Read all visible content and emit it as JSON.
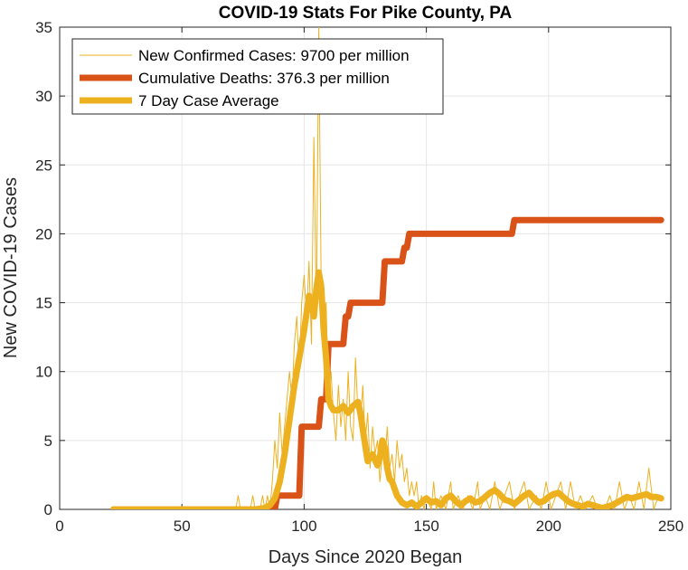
{
  "chart_data": {
    "type": "line",
    "title": "COVID-19 Stats For Pike County, PA",
    "xlabel": "Days Since 2020 Began",
    "ylabel": "New COVID-19 Cases",
    "xlim": [
      0,
      250
    ],
    "ylim": [
      0,
      35
    ],
    "xticks": [
      0,
      50,
      100,
      150,
      200,
      250
    ],
    "yticks": [
      0,
      5,
      10,
      15,
      20,
      25,
      30,
      35
    ],
    "grid": true,
    "legend_position": "top-left",
    "series": [
      {
        "name": "New Confirmed Cases: 9700 per million",
        "color": "#EDB120",
        "width": 1,
        "points": [
          [
            22,
            0
          ],
          [
            70,
            0
          ],
          [
            72,
            0
          ],
          [
            73,
            1
          ],
          [
            74,
            0
          ],
          [
            76,
            0
          ],
          [
            78,
            0
          ],
          [
            79,
            1
          ],
          [
            80,
            0
          ],
          [
            82,
            0
          ],
          [
            83,
            1
          ],
          [
            84,
            0
          ],
          [
            85,
            1
          ],
          [
            86,
            0
          ],
          [
            87,
            2
          ],
          [
            88,
            5
          ],
          [
            89,
            3
          ],
          [
            90,
            7
          ],
          [
            91,
            4
          ],
          [
            92,
            6
          ],
          [
            93,
            8
          ],
          [
            94,
            10
          ],
          [
            95,
            8
          ],
          [
            96,
            12
          ],
          [
            97,
            14
          ],
          [
            98,
            10
          ],
          [
            99,
            15
          ],
          [
            100,
            17
          ],
          [
            101,
            14
          ],
          [
            102,
            18
          ],
          [
            103,
            12
          ],
          [
            104,
            27
          ],
          [
            105,
            14
          ],
          [
            106,
            35
          ],
          [
            107,
            16
          ],
          [
            108,
            12
          ],
          [
            109,
            15
          ],
          [
            110,
            8
          ],
          [
            111,
            10
          ],
          [
            112,
            7
          ],
          [
            113,
            5
          ],
          [
            114,
            9
          ],
          [
            115,
            6
          ],
          [
            116,
            8
          ],
          [
            117,
            5
          ],
          [
            118,
            10
          ],
          [
            119,
            6
          ],
          [
            120,
            5
          ],
          [
            121,
            11
          ],
          [
            122,
            7
          ],
          [
            123,
            6
          ],
          [
            124,
            9
          ],
          [
            125,
            5
          ],
          [
            126,
            7
          ],
          [
            127,
            3
          ],
          [
            128,
            6
          ],
          [
            129,
            4
          ],
          [
            130,
            5
          ],
          [
            131,
            2
          ],
          [
            132,
            4
          ],
          [
            133,
            3
          ],
          [
            134,
            6
          ],
          [
            135,
            3
          ],
          [
            136,
            4
          ],
          [
            137,
            2
          ],
          [
            138,
            5
          ],
          [
            139,
            3
          ],
          [
            140,
            4
          ],
          [
            141,
            2
          ],
          [
            142,
            3
          ],
          [
            143,
            1
          ],
          [
            144,
            2
          ],
          [
            145,
            1
          ],
          [
            146,
            2
          ],
          [
            147,
            0
          ],
          [
            148,
            1
          ],
          [
            149,
            0
          ],
          [
            150,
            1
          ],
          [
            152,
            0
          ],
          [
            153,
            2
          ],
          [
            154,
            0
          ],
          [
            156,
            1
          ],
          [
            158,
            0
          ],
          [
            160,
            2
          ],
          [
            161,
            0
          ],
          [
            163,
            1
          ],
          [
            165,
            0
          ],
          [
            167,
            1
          ],
          [
            169,
            0
          ],
          [
            171,
            2
          ],
          [
            172,
            0
          ],
          [
            174,
            1
          ],
          [
            176,
            0
          ],
          [
            178,
            2
          ],
          [
            180,
            0
          ],
          [
            182,
            1
          ],
          [
            184,
            2
          ],
          [
            186,
            0
          ],
          [
            188,
            1
          ],
          [
            190,
            2
          ],
          [
            192,
            0
          ],
          [
            195,
            1
          ],
          [
            197,
            0
          ],
          [
            199,
            2
          ],
          [
            201,
            0
          ],
          [
            203,
            1
          ],
          [
            205,
            2
          ],
          [
            207,
            0
          ],
          [
            209,
            2
          ],
          [
            211,
            0
          ],
          [
            213,
            1
          ],
          [
            215,
            0
          ],
          [
            218,
            1
          ],
          [
            220,
            0
          ],
          [
            223,
            0
          ],
          [
            225,
            1
          ],
          [
            227,
            0
          ],
          [
            229,
            2
          ],
          [
            231,
            0
          ],
          [
            233,
            1
          ],
          [
            235,
            0
          ],
          [
            237,
            2
          ],
          [
            239,
            0
          ],
          [
            241,
            3
          ],
          [
            243,
            0
          ],
          [
            245,
            1
          ]
        ]
      },
      {
        "name": "Cumulative Deaths: 376.3 per million",
        "color": "#D95319",
        "width": 7,
        "points": [
          [
            22,
            0
          ],
          [
            88,
            0
          ],
          [
            89,
            1
          ],
          [
            98,
            1
          ],
          [
            99,
            6
          ],
          [
            106,
            6
          ],
          [
            107,
            8
          ],
          [
            109,
            8
          ],
          [
            110,
            12
          ],
          [
            116,
            12
          ],
          [
            117,
            14
          ],
          [
            118,
            14
          ],
          [
            119,
            15
          ],
          [
            132,
            15
          ],
          [
            133,
            18
          ],
          [
            140,
            18
          ],
          [
            141,
            19
          ],
          [
            142,
            19
          ],
          [
            143,
            20
          ],
          [
            158,
            20
          ],
          [
            159,
            20
          ],
          [
            185,
            20
          ],
          [
            186,
            21
          ],
          [
            246,
            21
          ]
        ]
      },
      {
        "name": "7 Day Case Average",
        "color": "#EDB120",
        "width": 7,
        "points": [
          [
            22,
            0
          ],
          [
            80,
            0
          ],
          [
            84,
            0.1
          ],
          [
            86,
            0.3
          ],
          [
            88,
            0.8
          ],
          [
            90,
            2.0
          ],
          [
            92,
            4.0
          ],
          [
            94,
            6.5
          ],
          [
            96,
            9.0
          ],
          [
            98,
            11.0
          ],
          [
            100,
            13.0
          ],
          [
            102,
            15.5
          ],
          [
            103,
            15.0
          ],
          [
            104,
            14.0
          ],
          [
            105,
            16.0
          ],
          [
            106,
            17.2
          ],
          [
            107,
            16.2
          ],
          [
            108,
            13.0
          ],
          [
            109,
            11.0
          ],
          [
            110,
            8.0
          ],
          [
            111,
            7.5
          ],
          [
            112,
            7.2
          ],
          [
            114,
            7.2
          ],
          [
            116,
            7.5
          ],
          [
            118,
            7.0
          ],
          [
            120,
            7.5
          ],
          [
            122,
            7.8
          ],
          [
            123,
            7.0
          ],
          [
            124,
            5.8
          ],
          [
            126,
            3.5
          ],
          [
            128,
            4.0
          ],
          [
            129,
            3.6
          ],
          [
            130,
            3.2
          ],
          [
            131,
            3.8
          ],
          [
            132,
            5.0
          ],
          [
            133,
            4.5
          ],
          [
            134,
            3.0
          ],
          [
            135,
            2.2
          ],
          [
            136,
            2.0
          ],
          [
            138,
            1.0
          ],
          [
            140,
            0.5
          ],
          [
            142,
            0.3
          ],
          [
            144,
            0.5
          ],
          [
            146,
            0.2
          ],
          [
            148,
            0.5
          ],
          [
            150,
            0.8
          ],
          [
            152,
            0.5
          ],
          [
            154,
            0.6
          ],
          [
            156,
            0.3
          ],
          [
            158,
            0.8
          ],
          [
            160,
            1.0
          ],
          [
            162,
            0.6
          ],
          [
            164,
            0.3
          ],
          [
            166,
            0.6
          ],
          [
            168,
            0.8
          ],
          [
            170,
            0.5
          ],
          [
            172,
            0.6
          ],
          [
            174,
            0.9
          ],
          [
            176,
            1.2
          ],
          [
            178,
            1.4
          ],
          [
            180,
            1.1
          ],
          [
            182,
            0.7
          ],
          [
            184,
            0.6
          ],
          [
            186,
            0.4
          ],
          [
            188,
            0.7
          ],
          [
            190,
            1.0
          ],
          [
            192,
            1.2
          ],
          [
            194,
            0.8
          ],
          [
            196,
            0.5
          ],
          [
            198,
            0.6
          ],
          [
            200,
            0.9
          ],
          [
            202,
            1.1
          ],
          [
            204,
            1.2
          ],
          [
            206,
            0.9
          ],
          [
            208,
            0.6
          ],
          [
            210,
            0.4
          ],
          [
            212,
            0.3
          ],
          [
            214,
            0.2
          ],
          [
            216,
            0.4
          ],
          [
            218,
            0.3
          ],
          [
            220,
            0.2
          ],
          [
            222,
            0.1
          ],
          [
            224,
            0.2
          ],
          [
            226,
            0.3
          ],
          [
            228,
            0.5
          ],
          [
            230,
            0.7
          ],
          [
            232,
            0.9
          ],
          [
            234,
            0.8
          ],
          [
            236,
            0.9
          ],
          [
            238,
            1.0
          ],
          [
            240,
            1.1
          ],
          [
            242,
            0.9
          ],
          [
            244,
            0.9
          ],
          [
            246,
            0.8
          ]
        ]
      }
    ]
  }
}
